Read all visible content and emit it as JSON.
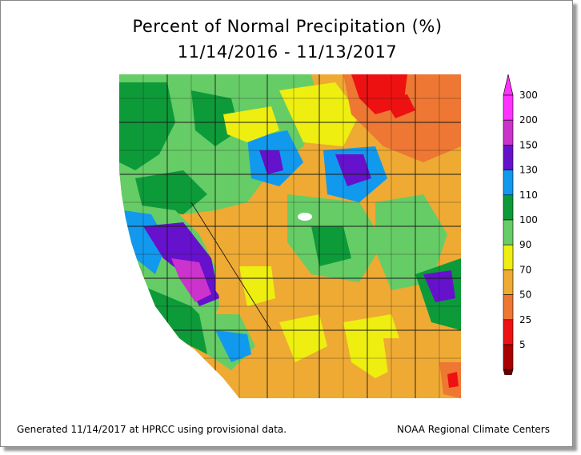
{
  "title": {
    "line1": "Percent of Normal Precipitation (%)",
    "line2": "11/14/2016 - 11/13/2017"
  },
  "legend": {
    "levels": [
      {
        "label": "300",
        "color": "#ff33ff"
      },
      {
        "label": "200",
        "color": "#cc33cc"
      },
      {
        "label": "150",
        "color": "#6611cc"
      },
      {
        "label": "130",
        "color": "#1199ee"
      },
      {
        "label": "110",
        "color": "#0d9b3a"
      },
      {
        "label": "100",
        "color": "#66cc66"
      },
      {
        "label": "90",
        "color": "#eeee11"
      },
      {
        "label": "70",
        "color": "#eeaa33"
      },
      {
        "label": "50",
        "color": "#ee7733"
      },
      {
        "label": "25",
        "color": "#ee1111"
      },
      {
        "label": "5",
        "color": "#aa0000"
      }
    ]
  },
  "footer": {
    "left": "Generated 11/14/2017 at HPRCC using provisional data.",
    "right": "NOAA Regional Climate Centers"
  }
}
